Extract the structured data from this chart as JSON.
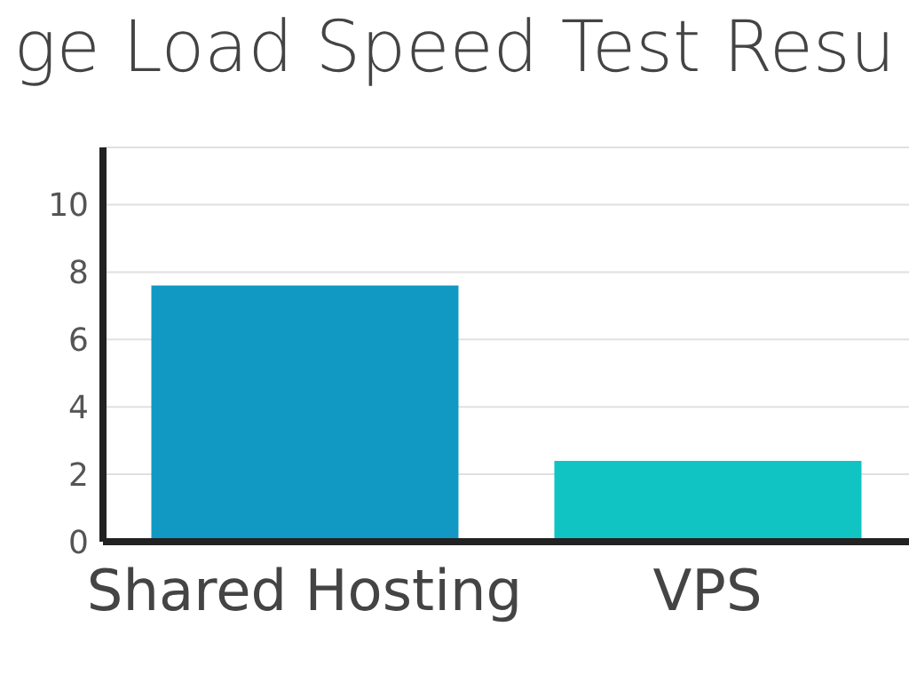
{
  "chart_data": {
    "type": "bar",
    "title": "ge Load Speed Test Resu",
    "categories": [
      "Shared Hosting",
      "VPS"
    ],
    "values": [
      7.6,
      2.4
    ],
    "colors": [
      "#1199c4",
      "#11c4c4"
    ],
    "ylim": [
      0,
      11.7
    ],
    "yticks": [
      0,
      2,
      4,
      6,
      8,
      10
    ],
    "grid": "y"
  }
}
